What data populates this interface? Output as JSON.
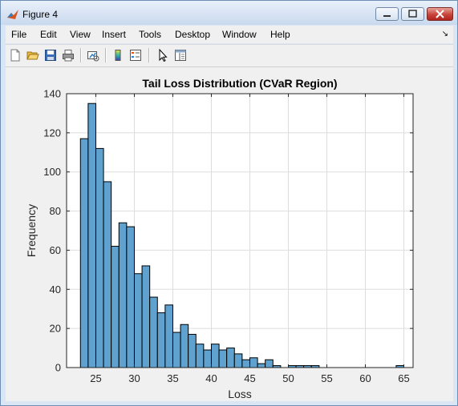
{
  "window": {
    "title": "Figure 4",
    "menu": [
      "File",
      "Edit",
      "View",
      "Insert",
      "Tools",
      "Desktop",
      "Window",
      "Help"
    ]
  },
  "toolbar": {
    "icons": [
      "new-figure-icon",
      "open-file-icon",
      "save-icon",
      "print-icon",
      "link-plot-icon",
      "insert-colorbar-icon",
      "insert-legend-icon",
      "edit-plot-icon",
      "property-editor-icon"
    ]
  },
  "colors": {
    "bar_fill": "#5fa2d0",
    "bar_edge": "#000000",
    "title_bar": "#c9d9ee"
  },
  "chart_data": {
    "type": "bar",
    "title": "Tail Loss Distribution (CVaR Region)",
    "xlabel": "Loss",
    "ylabel": "Frequency",
    "xlim": [
      21.2,
      66.2
    ],
    "ylim": [
      0,
      140
    ],
    "xticks": [
      25,
      30,
      35,
      40,
      45,
      50,
      55,
      60,
      65
    ],
    "yticks": [
      0,
      20,
      40,
      60,
      80,
      100,
      120,
      140
    ],
    "grid": true,
    "bin_start": 23.0,
    "bin_width": 1.0,
    "values": [
      117,
      135,
      112,
      95,
      62,
      74,
      72,
      48,
      52,
      36,
      28,
      32,
      18,
      22,
      17,
      12,
      9,
      12,
      9,
      10,
      7,
      4,
      5,
      2,
      4,
      1,
      0,
      1,
      1,
      1,
      1,
      0,
      0,
      0,
      0,
      0,
      0,
      0,
      0,
      0,
      0,
      1
    ]
  }
}
